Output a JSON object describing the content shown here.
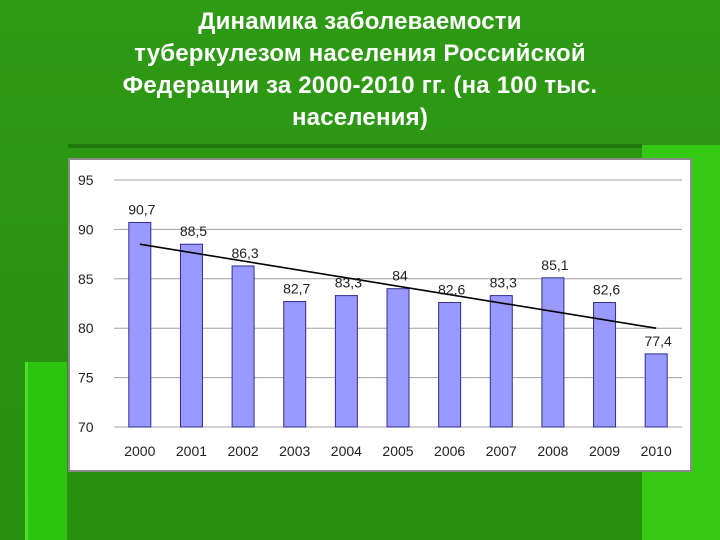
{
  "slide": {
    "title_lines": [
      "Динамика заболеваемости",
      "туберкулезом населения Российской",
      "Федерации за 2000-2010 гг. (на 100 тыс.",
      "населения)"
    ]
  },
  "colors": {
    "bar_fill": "#9999ff",
    "bar_stroke": "#2f2f8f",
    "trend": "#000000",
    "grid": "#a0a0a0"
  },
  "chart_data": {
    "type": "bar",
    "categories": [
      "2000",
      "2001",
      "2002",
      "2003",
      "2004",
      "2005",
      "2006",
      "2007",
      "2008",
      "2009",
      "2010"
    ],
    "values": [
      90.7,
      88.5,
      86.3,
      82.7,
      83.3,
      84,
      82.6,
      83.3,
      85.1,
      82.6,
      77.4
    ],
    "value_labels": [
      "90,7",
      "88,5",
      "86,3",
      "82,7",
      "83,3",
      "84",
      "82,6",
      "83,3",
      "85,1",
      "82,6",
      "77,4"
    ],
    "ylim": [
      70,
      95
    ],
    "yticks": [
      70,
      75,
      80,
      85,
      90,
      95
    ],
    "ytick_labels": [
      "70",
      "75",
      "80",
      "85",
      "90",
      "95"
    ],
    "grid": true,
    "legend": "none",
    "trendline": {
      "type": "linear",
      "from": [
        2000,
        88.5
      ],
      "to": [
        2010,
        80
      ]
    },
    "title": "",
    "xlabel": "",
    "ylabel": ""
  }
}
